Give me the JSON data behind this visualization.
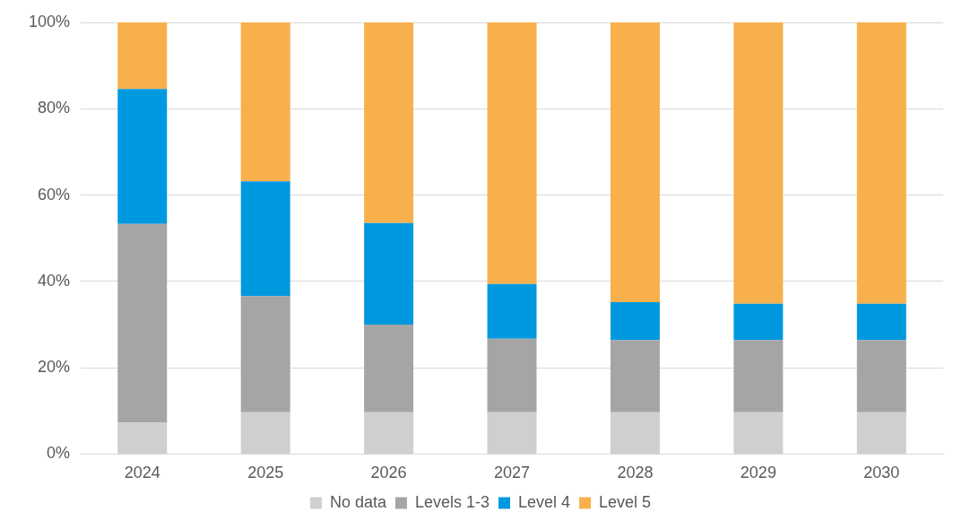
{
  "chart_data": {
    "type": "bar",
    "stacked": true,
    "categories": [
      "2024",
      "2025",
      "2026",
      "2027",
      "2028",
      "2029",
      "2030"
    ],
    "series": [
      {
        "name": "No data",
        "color": "#d0cecf",
        "values": [
          7.3,
          9.7,
          9.7,
          9.7,
          9.7,
          9.7,
          9.7
        ]
      },
      {
        "name": "Levels 1-3",
        "color": "#a5a5a5",
        "values": [
          46,
          26.9,
          20.3,
          17,
          16.7,
          16.7,
          16.7
        ]
      },
      {
        "name": "Level 4",
        "color": "#0099e0",
        "values": [
          31.3,
          26.6,
          23.5,
          12.7,
          8.8,
          8.4,
          8.4
        ]
      },
      {
        "name": "Level 5",
        "color": "#f7b04c",
        "values": [
          15.4,
          36.8,
          46.5,
          60.6,
          64.8,
          65.2,
          65.2
        ]
      }
    ],
    "ylim": [
      0,
      100
    ],
    "yticks": [
      {
        "value": 0,
        "label": "0%"
      },
      {
        "value": 20,
        "label": "20%"
      },
      {
        "value": 40,
        "label": "40%"
      },
      {
        "value": 60,
        "label": "60%"
      },
      {
        "value": 80,
        "label": "80%"
      },
      {
        "value": 100,
        "label": "100%"
      }
    ],
    "grid": "y",
    "legend": "bottom"
  }
}
